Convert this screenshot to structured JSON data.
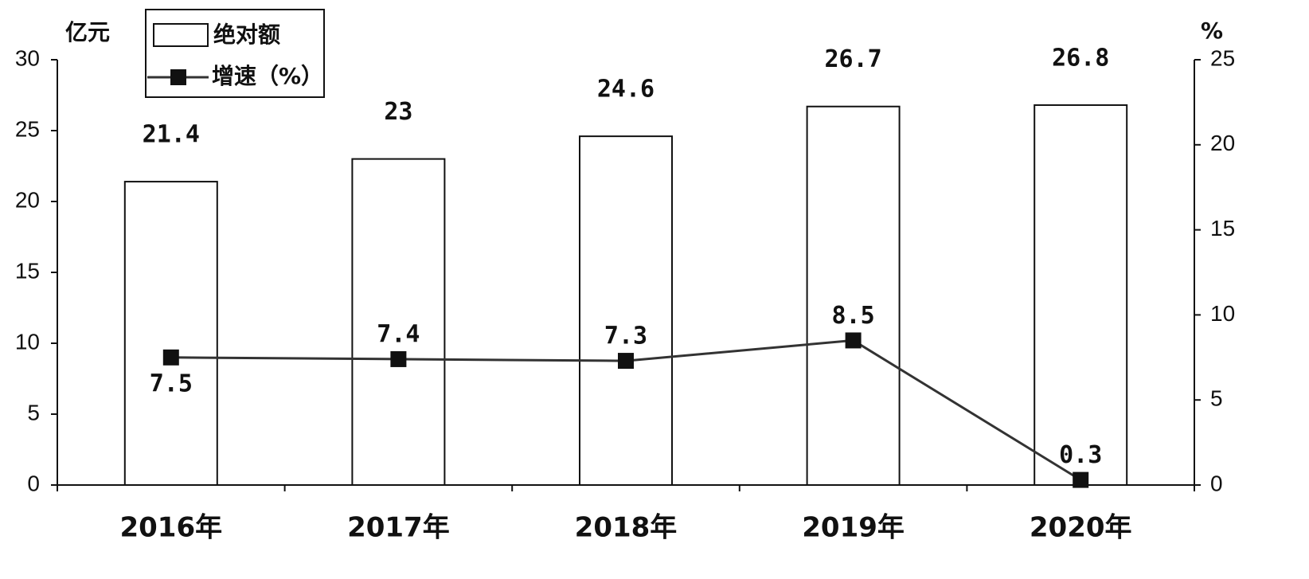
{
  "chart_data": {
    "type": "bar",
    "y_label": "亿元",
    "y2_label": "%",
    "categories": [
      "2016年",
      "2017年",
      "2018年",
      "2019年",
      "2020年"
    ],
    "series": [
      {
        "name": "绝对额",
        "color": "#ffffff",
        "values": [
          21.4,
          23,
          24.6,
          26.7,
          26.8
        ]
      },
      {
        "name": "增速（%）",
        "type": "line",
        "color": "#333333",
        "axis": "y2",
        "values": [
          7.5,
          7.4,
          7.3,
          8.5,
          0.3
        ]
      }
    ],
    "ylim": [
      0,
      30
    ],
    "yticks": [
      0,
      5,
      10,
      15,
      20,
      25,
      30
    ],
    "y2lim": [
      0,
      25
    ],
    "y2ticks": [
      0,
      5,
      10,
      15,
      20,
      25
    ],
    "grid": false
  }
}
